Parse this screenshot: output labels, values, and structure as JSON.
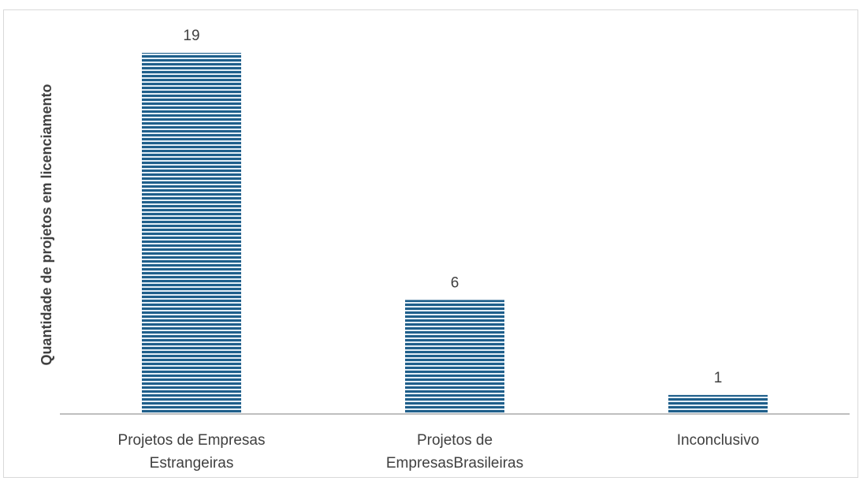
{
  "chart_data": {
    "type": "bar",
    "categories": [
      [
        "Projetos de Empresas",
        "Estrangeiras"
      ],
      [
        "Projetos de",
        "EmpresasBrasileiras"
      ],
      [
        "Inconclusivo"
      ]
    ],
    "values": [
      19,
      6,
      1
    ],
    "data_labels": [
      "19",
      "6",
      "1"
    ],
    "xlabel": "",
    "ylabel": "Quantidade de projetos em licenciamento",
    "ylim": [
      0,
      19
    ],
    "grid": false,
    "legend": "none",
    "colors": {
      "bar_stripe_dark": "#1f5f8b",
      "bar_stripe_light": "#e3eef6",
      "axis": "#bfbfbf",
      "text": "#404040",
      "border": "#d9d9d9"
    }
  }
}
